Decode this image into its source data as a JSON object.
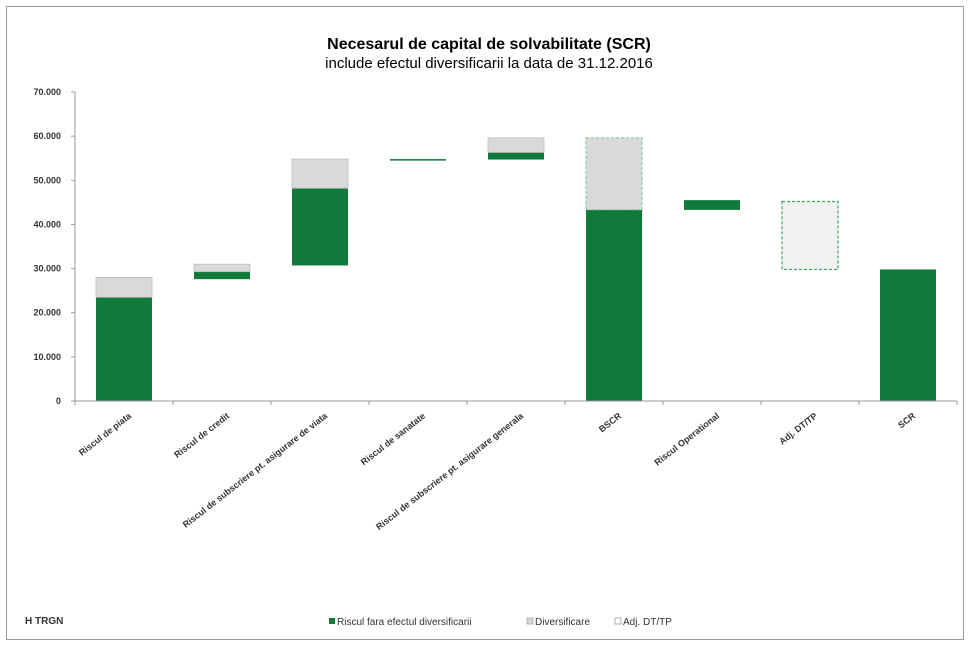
{
  "chart_data": {
    "type": "bar",
    "title": "Necesarul de capital de solvabilitate (SCR)",
    "subtitle": "include efectul diversificarii la data de 31.12.2016",
    "ylim": [
      0,
      70000
    ],
    "yticks": [
      "0",
      "10.000",
      "20.000",
      "30.000",
      "40.000",
      "50.000",
      "60.000",
      "70.000"
    ],
    "yticks_values": [
      0,
      10000,
      20000,
      30000,
      40000,
      50000,
      60000,
      70000
    ],
    "categories": [
      "Riscul de piata",
      "Riscul de credit",
      "Riscul de subscriere pt. asigurare de viata",
      "Riscul de sanatate",
      "Riscul de subscriere pt. asigurare generala",
      "BSCR",
      "Riscul Operational",
      "Adj. DT/TP",
      "SCR"
    ],
    "series": [
      {
        "name": "Riscul fara efectul diversificarii",
        "color": "#0f7a3a",
        "segments": [
          [
            0,
            23500
          ],
          [
            27600,
            29300
          ],
          [
            30700,
            48200
          ],
          [
            54600,
            54800
          ],
          [
            54700,
            56300
          ],
          [
            0,
            43300
          ],
          [
            43300,
            45500
          ],
          null,
          [
            0,
            29800
          ]
        ]
      },
      {
        "name": "Diversificare",
        "color": "#d9d9d9",
        "segments": [
          [
            23500,
            28000
          ],
          [
            29300,
            31000
          ],
          [
            48200,
            54800
          ],
          null,
          [
            56300,
            59600
          ],
          [
            43300,
            59600
          ],
          null,
          null,
          null
        ]
      },
      {
        "name": "Adj. DT/TP",
        "color": "#f2f2f2",
        "segments": [
          null,
          null,
          null,
          null,
          null,
          null,
          null,
          [
            29800,
            45200
          ],
          null
        ]
      }
    ],
    "legend_position": "bottom",
    "grid": false
  },
  "logo_text": "H TRGN"
}
